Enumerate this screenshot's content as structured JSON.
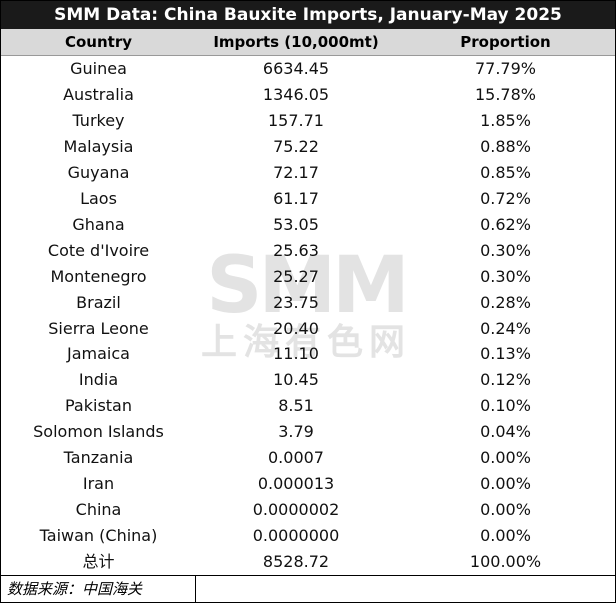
{
  "header": {
    "title": "SMM Data: China Bauxite Imports, January-May 2025"
  },
  "table": {
    "columns": [
      "Country",
      "Imports (10,000mt)",
      "Proportion"
    ],
    "rows": [
      [
        "Guinea",
        "6634.45",
        "77.79%"
      ],
      [
        "Australia",
        "1346.05",
        "15.78%"
      ],
      [
        "Turkey",
        "157.71",
        "1.85%"
      ],
      [
        "Malaysia",
        "75.22",
        "0.88%"
      ],
      [
        "Guyana",
        "72.17",
        "0.85%"
      ],
      [
        "Laos",
        "61.17",
        "0.72%"
      ],
      [
        "Ghana",
        "53.05",
        "0.62%"
      ],
      [
        "Cote d'Ivoire",
        "25.63",
        "0.30%"
      ],
      [
        "Montenegro",
        "25.27",
        "0.30%"
      ],
      [
        "Brazil",
        "23.75",
        "0.28%"
      ],
      [
        "Sierra Leone",
        "20.40",
        "0.24%"
      ],
      [
        "Jamaica",
        "11.10",
        "0.13%"
      ],
      [
        "India",
        "10.45",
        "0.12%"
      ],
      [
        "Pakistan",
        "8.51",
        "0.10%"
      ],
      [
        "Solomon Islands",
        "3.79",
        "0.04%"
      ],
      [
        "Tanzania",
        "0.0007",
        "0.00%"
      ],
      [
        "Iran",
        "0.000013",
        "0.00%"
      ],
      [
        "China",
        "0.0000002",
        "0.00%"
      ],
      [
        "Taiwan (China)",
        "0.0000000",
        "0.00%"
      ],
      [
        "总计",
        "8528.72",
        "100.00%"
      ]
    ]
  },
  "watermark": {
    "logo": "SMM",
    "name": "上海有色网"
  },
  "footer": {
    "source": "数据来源：中国海关"
  }
}
